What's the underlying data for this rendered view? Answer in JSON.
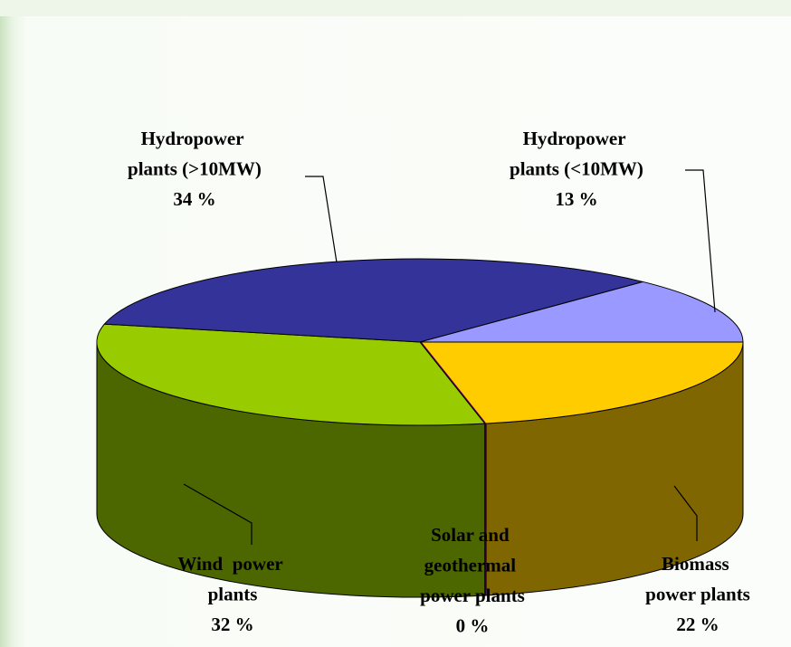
{
  "chart_data": {
    "type": "pie3d",
    "categories": [
      "Biomass power plants",
      "Solar and geothermal power plants",
      "Wind  power plants",
      "Hydropower plants (>10MW)",
      "Hydropower plants (<10MW)"
    ],
    "values": [
      22,
      0,
      32,
      34,
      13
    ],
    "value_labels": [
      "22 %",
      "0 %",
      "32 %",
      "34 %",
      "13 %"
    ],
    "colors": [
      "#ffcc00",
      "#660066",
      "#99cc00",
      "#333399",
      "#9999ff"
    ]
  }
}
